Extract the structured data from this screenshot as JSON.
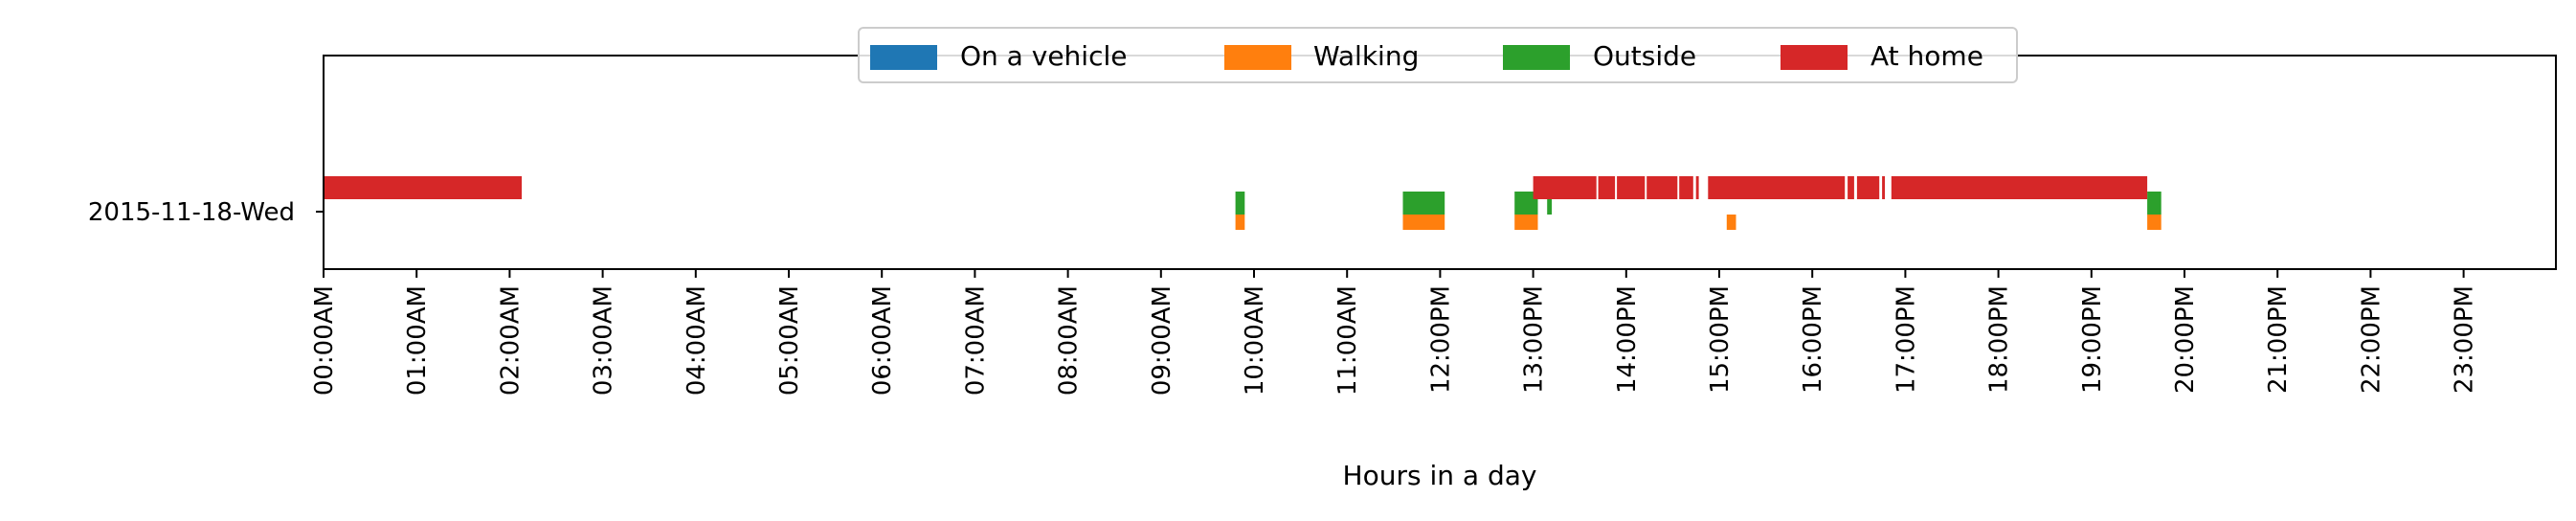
{
  "chart_data": {
    "type": "timeline",
    "xlabel": "Hours in a day",
    "row_label": "2015-11-18-Wed",
    "x_domain_hours": [
      0,
      24
    ],
    "x_ticks": [
      {
        "hour": 0,
        "label": "00:00AM"
      },
      {
        "hour": 1,
        "label": "01:00AM"
      },
      {
        "hour": 2,
        "label": "02:00AM"
      },
      {
        "hour": 3,
        "label": "03:00AM"
      },
      {
        "hour": 4,
        "label": "04:00AM"
      },
      {
        "hour": 5,
        "label": "05:00AM"
      },
      {
        "hour": 6,
        "label": "06:00AM"
      },
      {
        "hour": 7,
        "label": "07:00AM"
      },
      {
        "hour": 8,
        "label": "08:00AM"
      },
      {
        "hour": 9,
        "label": "09:00AM"
      },
      {
        "hour": 10,
        "label": "10:00AM"
      },
      {
        "hour": 11,
        "label": "11:00AM"
      },
      {
        "hour": 12,
        "label": "12:00PM"
      },
      {
        "hour": 13,
        "label": "13:00PM"
      },
      {
        "hour": 14,
        "label": "14:00PM"
      },
      {
        "hour": 15,
        "label": "15:00PM"
      },
      {
        "hour": 16,
        "label": "16:00PM"
      },
      {
        "hour": 17,
        "label": "17:00PM"
      },
      {
        "hour": 18,
        "label": "18:00PM"
      },
      {
        "hour": 19,
        "label": "19:00PM"
      },
      {
        "hour": 20,
        "label": "20:00PM"
      },
      {
        "hour": 21,
        "label": "21:00PM"
      },
      {
        "hour": 22,
        "label": "22:00PM"
      },
      {
        "hour": 23,
        "label": "23:00PM"
      }
    ],
    "legend_position": "top-center",
    "series": [
      {
        "name": "On a vehicle",
        "color": "#1f77b4",
        "lane": "low",
        "intervals": []
      },
      {
        "name": "Walking",
        "color": "#ff7f0e",
        "lane": "low",
        "intervals": [
          [
            9.8,
            9.9
          ],
          [
            11.6,
            12.05
          ],
          [
            12.8,
            13.05
          ],
          [
            15.08,
            15.18
          ],
          [
            19.6,
            19.75
          ]
        ]
      },
      {
        "name": "Outside",
        "color": "#2ca02c",
        "lane": "mid",
        "intervals": [
          [
            9.8,
            9.9
          ],
          [
            11.6,
            12.05
          ],
          [
            12.8,
            13.05
          ],
          [
            13.15,
            13.2
          ],
          [
            19.6,
            19.75
          ]
        ]
      },
      {
        "name": "At home",
        "color": "#d62728",
        "lane": "high",
        "intervals": [
          [
            0.0,
            2.13
          ],
          [
            13.0,
            13.68
          ],
          [
            13.7,
            13.88
          ],
          [
            13.9,
            14.2
          ],
          [
            14.22,
            14.55
          ],
          [
            14.57,
            14.72
          ],
          [
            14.75,
            14.78
          ],
          [
            14.88,
            16.35
          ],
          [
            16.38,
            16.45
          ],
          [
            16.48,
            16.72
          ],
          [
            16.75,
            16.78
          ],
          [
            16.85,
            19.6
          ]
        ]
      }
    ]
  }
}
